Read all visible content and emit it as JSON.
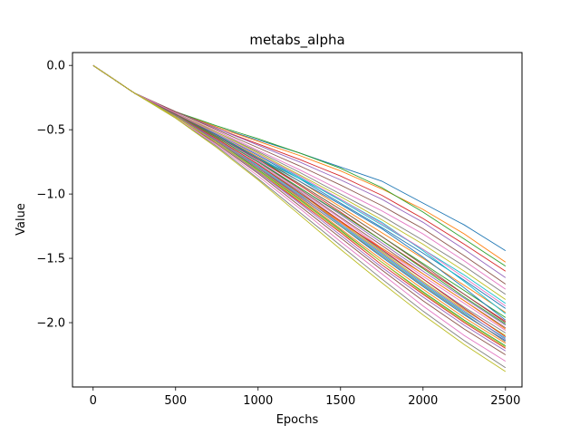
{
  "chart_data": {
    "type": "line",
    "title": "metabs_alpha",
    "xlabel": "Epochs",
    "ylabel": "Value",
    "xlim": [
      -125,
      2600
    ],
    "ylim": [
      -2.5,
      0.1
    ],
    "xticks": [
      0,
      500,
      1000,
      1500,
      2000,
      2500
    ],
    "xtick_labels": [
      "0",
      "500",
      "1000",
      "1500",
      "2000",
      "2500"
    ],
    "yticks": [
      0.0,
      -0.5,
      -1.0,
      -1.5,
      -2.0
    ],
    "ytick_labels": [
      "0.0",
      "−0.5",
      "−1.0",
      "−1.5",
      "−2.0"
    ],
    "grid": false,
    "legend": false,
    "x": [
      0,
      250,
      500,
      750,
      1000,
      1250,
      1500,
      1750,
      2000,
      2250,
      2500
    ],
    "palette": [
      "#1f77b4",
      "#ff7f0e",
      "#2ca02c",
      "#d62728",
      "#9467bd",
      "#8c564b",
      "#e377c2",
      "#7f7f7f",
      "#bcbd22",
      "#17becf"
    ],
    "series": [
      {
        "values": [
          0,
          -0.215,
          -0.36,
          -0.48,
          -0.58,
          -0.68,
          -0.79,
          -0.9,
          -1.07,
          -1.24,
          -1.44
        ]
      },
      {
        "values": [
          0,
          -0.215,
          -0.36,
          -0.48,
          -0.59,
          -0.7,
          -0.82,
          -0.96,
          -1.12,
          -1.31,
          -1.53
        ]
      },
      {
        "values": [
          0,
          -0.215,
          -0.36,
          -0.47,
          -0.57,
          -0.68,
          -0.8,
          -0.95,
          -1.14,
          -1.35,
          -1.56
        ]
      },
      {
        "values": [
          0,
          -0.215,
          -0.36,
          -0.49,
          -0.61,
          -0.73,
          -0.86,
          -1.01,
          -1.19,
          -1.39,
          -1.6
        ]
      },
      {
        "values": [
          0,
          -0.215,
          -0.36,
          -0.49,
          -0.62,
          -0.75,
          -0.89,
          -1.04,
          -1.22,
          -1.43,
          -1.65
        ]
      },
      {
        "values": [
          0,
          -0.215,
          -0.36,
          -0.5,
          -0.64,
          -0.78,
          -0.93,
          -1.09,
          -1.27,
          -1.48,
          -1.7
        ]
      },
      {
        "values": [
          0,
          -0.215,
          -0.37,
          -0.51,
          -0.66,
          -0.81,
          -0.97,
          -1.13,
          -1.31,
          -1.52,
          -1.74
        ]
      },
      {
        "values": [
          0,
          -0.215,
          -0.37,
          -0.52,
          -0.67,
          -0.83,
          -1.0,
          -1.17,
          -1.36,
          -1.56,
          -1.78
        ]
      },
      {
        "values": [
          0,
          -0.215,
          -0.37,
          -0.52,
          -0.68,
          -0.85,
          -1.02,
          -1.2,
          -1.39,
          -1.6,
          -1.82
        ]
      },
      {
        "values": [
          0,
          -0.215,
          -0.37,
          -0.53,
          -0.69,
          -0.87,
          -1.05,
          -1.24,
          -1.43,
          -1.63,
          -1.85
        ]
      },
      {
        "values": [
          0,
          -0.215,
          -0.37,
          -0.53,
          -0.7,
          -0.88,
          -1.07,
          -1.26,
          -1.46,
          -1.67,
          -1.89
        ]
      },
      {
        "values": [
          0,
          -0.215,
          -0.37,
          -0.54,
          -0.71,
          -0.9,
          -1.1,
          -1.3,
          -1.5,
          -1.71,
          -1.92
        ]
      },
      {
        "values": [
          0,
          -0.215,
          -0.38,
          -0.54,
          -0.72,
          -0.92,
          -1.12,
          -1.33,
          -1.54,
          -1.75,
          -1.96
        ]
      },
      {
        "values": [
          0,
          -0.215,
          -0.38,
          -0.55,
          -0.73,
          -0.93,
          -1.14,
          -1.36,
          -1.57,
          -1.78,
          -1.99
        ]
      },
      {
        "values": [
          0,
          -0.215,
          -0.38,
          -0.55,
          -0.74,
          -0.95,
          -1.16,
          -1.38,
          -1.6,
          -1.81,
          -2.02
        ]
      },
      {
        "values": [
          0,
          -0.215,
          -0.38,
          -0.56,
          -0.75,
          -0.96,
          -1.18,
          -1.4,
          -1.62,
          -1.83,
          -2.04
        ]
      },
      {
        "values": [
          0,
          -0.215,
          -0.38,
          -0.56,
          -0.76,
          -0.97,
          -1.19,
          -1.42,
          -1.64,
          -1.85,
          -2.06
        ]
      },
      {
        "values": [
          0,
          -0.215,
          -0.38,
          -0.57,
          -0.77,
          -0.98,
          -1.21,
          -1.44,
          -1.66,
          -1.88,
          -2.08
        ]
      },
      {
        "values": [
          0,
          -0.215,
          -0.39,
          -0.57,
          -0.77,
          -0.99,
          -1.22,
          -1.45,
          -1.68,
          -1.9,
          -2.1
        ]
      },
      {
        "values": [
          0,
          -0.215,
          -0.39,
          -0.58,
          -0.78,
          -1.0,
          -1.24,
          -1.47,
          -1.7,
          -1.92,
          -2.12
        ]
      },
      {
        "values": [
          0,
          -0.215,
          -0.39,
          -0.58,
          -0.79,
          -1.02,
          -1.25,
          -1.49,
          -1.72,
          -1.94,
          -2.14
        ]
      },
      {
        "values": [
          0,
          -0.215,
          -0.39,
          -0.59,
          -0.8,
          -1.03,
          -1.27,
          -1.51,
          -1.74,
          -1.96,
          -2.16
        ]
      },
      {
        "values": [
          0,
          -0.215,
          -0.39,
          -0.59,
          -0.81,
          -1.04,
          -1.28,
          -1.53,
          -1.76,
          -1.98,
          -2.18
        ]
      },
      {
        "values": [
          0,
          -0.215,
          -0.4,
          -0.6,
          -0.82,
          -1.06,
          -1.3,
          -1.55,
          -1.78,
          -2.0,
          -2.2
        ]
      },
      {
        "values": [
          0,
          -0.215,
          -0.4,
          -0.6,
          -0.83,
          -1.07,
          -1.32,
          -1.57,
          -1.8,
          -2.02,
          -2.22
        ]
      },
      {
        "values": [
          0,
          -0.215,
          -0.4,
          -0.61,
          -0.84,
          -1.09,
          -1.34,
          -1.59,
          -1.83,
          -2.05,
          -2.25
        ]
      },
      {
        "values": [
          0,
          -0.215,
          -0.4,
          -0.62,
          -0.86,
          -1.11,
          -1.37,
          -1.62,
          -1.87,
          -2.1,
          -2.3
        ]
      },
      {
        "values": [
          0,
          -0.215,
          -0.41,
          -0.63,
          -0.88,
          -1.14,
          -1.4,
          -1.66,
          -1.91,
          -2.14,
          -2.35
        ]
      },
      {
        "values": [
          0,
          -0.215,
          -0.41,
          -0.64,
          -0.89,
          -1.16,
          -1.43,
          -1.69,
          -1.94,
          -2.17,
          -2.38
        ]
      },
      {
        "values": [
          0,
          -0.215,
          -0.38,
          -0.55,
          -0.72,
          -0.88,
          -1.04,
          -1.22,
          -1.44,
          -1.68,
          -1.93
        ]
      },
      {
        "values": [
          0,
          -0.215,
          -0.38,
          -0.54,
          -0.72,
          -0.9,
          -1.08,
          -1.27,
          -1.49,
          -1.73,
          -1.98
        ]
      },
      {
        "values": [
          0,
          -0.215,
          -0.39,
          -0.58,
          -0.79,
          -1.01,
          -1.22,
          -1.42,
          -1.62,
          -1.83,
          -2.05
        ]
      },
      {
        "values": [
          0,
          -0.215,
          -0.38,
          -0.56,
          -0.75,
          -0.95,
          -1.15,
          -1.36,
          -1.58,
          -1.8,
          -2.01
        ]
      },
      {
        "values": [
          0,
          -0.215,
          -0.39,
          -0.57,
          -0.77,
          -0.99,
          -1.21,
          -1.43,
          -1.66,
          -1.89,
          -2.11
        ]
      },
      {
        "values": [
          0,
          -0.215,
          -0.39,
          -0.58,
          -0.79,
          -1.01,
          -1.23,
          -1.46,
          -1.69,
          -1.91,
          -2.13
        ]
      },
      {
        "values": [
          0,
          -0.215,
          -0.38,
          -0.55,
          -0.73,
          -0.92,
          -1.12,
          -1.33,
          -1.55,
          -1.78,
          -2.0
        ]
      },
      {
        "values": [
          0,
          -0.215,
          -0.37,
          -0.53,
          -0.69,
          -0.86,
          -1.04,
          -1.23,
          -1.43,
          -1.65,
          -1.87
        ]
      },
      {
        "values": [
          0,
          -0.215,
          -0.39,
          -0.59,
          -0.8,
          -1.02,
          -1.25,
          -1.48,
          -1.71,
          -1.93,
          -2.15
        ]
      },
      {
        "values": [
          0,
          -0.215,
          -0.4,
          -0.6,
          -0.82,
          -1.05,
          -1.29,
          -1.53,
          -1.77,
          -1.99,
          -2.19
        ]
      }
    ]
  }
}
